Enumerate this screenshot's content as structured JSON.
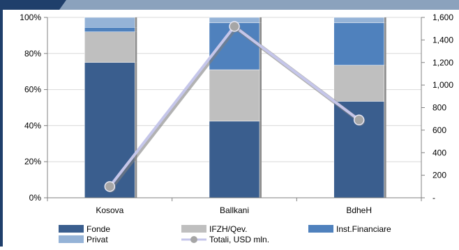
{
  "chart_data": {
    "type": "bar",
    "stacked": true,
    "stack_mode": "percent",
    "categories": [
      "Kosova",
      "Ballkani",
      "BdheH"
    ],
    "series": [
      {
        "name": "Fonde",
        "values": [
          75,
          42.5,
          53.5
        ],
        "color": "#3A5E8E"
      },
      {
        "name": "IFZH/Qev.",
        "values": [
          17,
          28.5,
          20
        ],
        "color": "#BFBFBF"
      },
      {
        "name": "Inst.Financiare",
        "values": [
          2.5,
          26,
          23.5
        ],
        "color": "#4F81BD"
      },
      {
        "name": "Privat",
        "values": [
          5.5,
          3,
          3
        ],
        "color": "#95B3D7"
      }
    ],
    "line_series": {
      "name": "Totali, USD mln.",
      "axis": "right",
      "values": [
        100,
        1520,
        690
      ],
      "color": "#C5C6EA",
      "marker_color": "#A6A6A6"
    },
    "y_left": {
      "ylim": [
        0,
        100
      ],
      "ticks": [
        "0%",
        "20%",
        "40%",
        "60%",
        "80%",
        "100%"
      ]
    },
    "y_right": {
      "ylim": [
        0,
        1600
      ],
      "ticks": [
        "-",
        "200",
        "400",
        "600",
        "800",
        "1,000",
        "1,200",
        "1,400",
        "1,600"
      ]
    },
    "grid": true,
    "legend_position": "bottom",
    "title": "",
    "xlabel": "",
    "ylabel": ""
  },
  "theme": {
    "frame_color": "#1F3F6B",
    "band_color": "#8BA2BD",
    "grid_color": "#D9D9D9"
  }
}
